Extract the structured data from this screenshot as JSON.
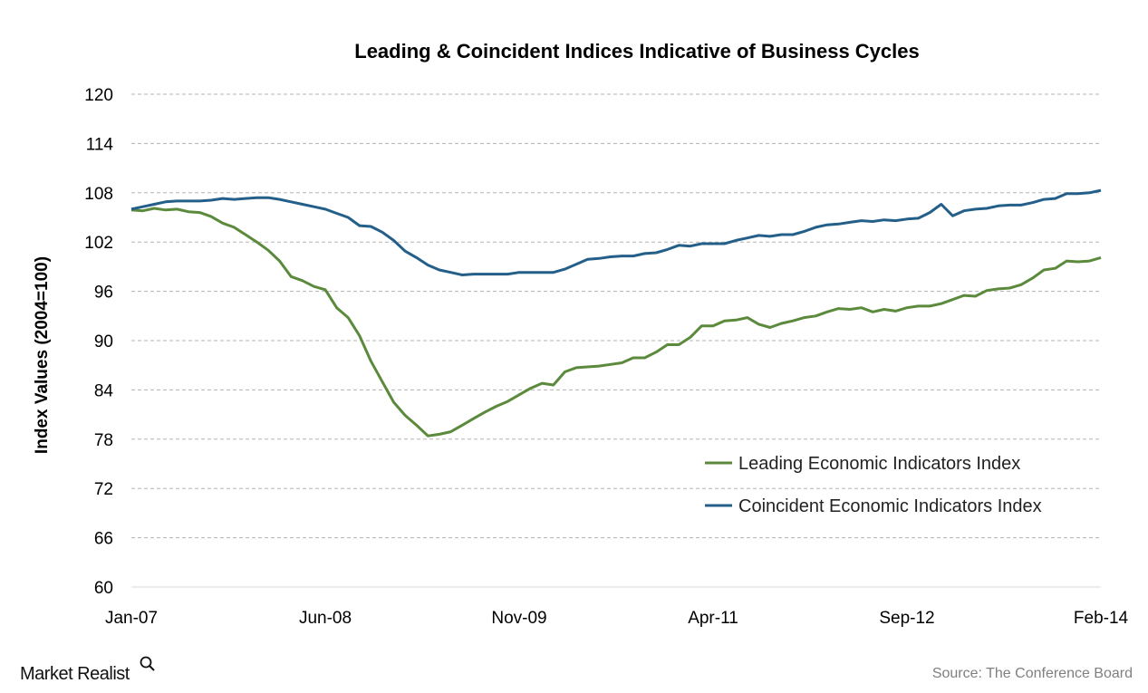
{
  "chart_data": {
    "type": "line",
    "title": "Leading & Coincident Indices Indicative of Business Cycles",
    "ylabel": "Index Values (2004=100)",
    "xlabel": "",
    "ylim": [
      60,
      120
    ],
    "yticks": [
      "60",
      "66",
      "72",
      "78",
      "84",
      "90",
      "96",
      "102",
      "108",
      "114",
      "120"
    ],
    "xtick_labels": [
      "Jan-07",
      "Jun-08",
      "Nov-09",
      "Apr-11",
      "Sep-12",
      "Feb-14"
    ],
    "x_start": "Jan-07",
    "x_end": "Feb-14",
    "x_frequency": "monthly",
    "grid": "horizontal dashed",
    "legend_position": "bottom-right",
    "series": [
      {
        "name": "Leading Economic Indicators Index",
        "color": "#5b8a3c",
        "values": [
          105.9,
          105.8,
          106.1,
          105.9,
          106.0,
          105.7,
          105.6,
          105.1,
          104.3,
          103.8,
          102.9,
          102.0,
          101.0,
          99.7,
          97.8,
          97.3,
          96.6,
          96.2,
          94.0,
          92.8,
          90.6,
          87.5,
          85.0,
          82.5,
          80.9,
          79.7,
          78.4,
          78.6,
          78.9,
          79.7,
          80.5,
          81.3,
          82.0,
          82.6,
          83.4,
          84.2,
          84.8,
          84.6,
          86.2,
          86.7,
          86.8,
          86.9,
          87.1,
          87.3,
          87.9,
          87.9,
          88.6,
          89.5,
          89.5,
          90.4,
          91.8,
          91.8,
          92.4,
          92.5,
          92.8,
          92.0,
          91.6,
          92.1,
          92.4,
          92.8,
          93.0,
          93.5,
          93.9,
          93.8,
          94.0,
          93.5,
          93.8,
          93.6,
          94.0,
          94.2,
          94.2,
          94.5,
          95.0,
          95.5,
          95.4,
          96.1,
          96.3,
          96.4,
          96.8,
          97.6,
          98.6,
          98.8,
          99.7,
          99.6,
          99.7,
          100.1
        ]
      },
      {
        "name": "Coincident Economic Indicators Index",
        "color": "#245f8a",
        "values": [
          106.0,
          106.3,
          106.6,
          106.9,
          107.0,
          107.0,
          107.0,
          107.1,
          107.3,
          107.2,
          107.3,
          107.4,
          107.4,
          107.2,
          106.9,
          106.6,
          106.3,
          106.0,
          105.5,
          105.0,
          104.0,
          103.9,
          103.2,
          102.2,
          100.9,
          100.1,
          99.2,
          98.6,
          98.3,
          98.0,
          98.1,
          98.1,
          98.1,
          98.1,
          98.3,
          98.3,
          98.3,
          98.3,
          98.7,
          99.3,
          99.9,
          100.0,
          100.2,
          100.3,
          100.3,
          100.6,
          100.7,
          101.1,
          101.6,
          101.5,
          101.8,
          101.8,
          101.8,
          102.2,
          102.5,
          102.8,
          102.7,
          102.9,
          102.9,
          103.3,
          103.8,
          104.1,
          104.2,
          104.4,
          104.6,
          104.5,
          104.7,
          104.6,
          104.8,
          104.9,
          105.6,
          106.6,
          105.2,
          105.8,
          106.0,
          106.1,
          106.4,
          106.5,
          106.5,
          106.8,
          107.2,
          107.3,
          107.9,
          107.9,
          108.0,
          108.3
        ]
      }
    ]
  },
  "footer": {
    "logo": "Market Realist",
    "source": "Source: The Conference Board"
  }
}
